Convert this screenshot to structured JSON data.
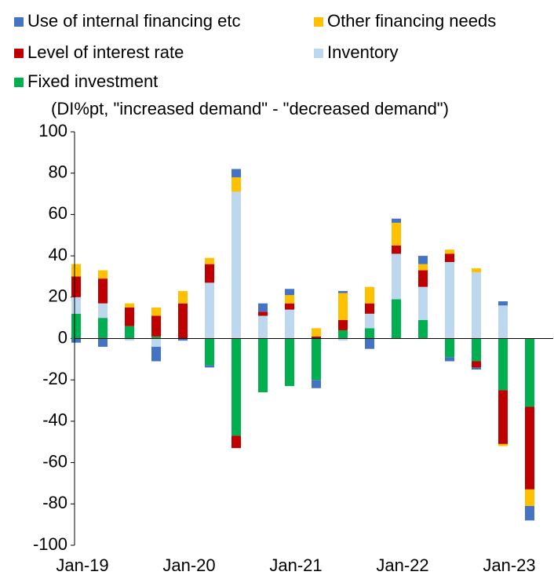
{
  "chart_data": {
    "type": "bar",
    "stacked": true,
    "subtitle": "(DI%pt, \"increased demand\" - \"decreased demand\")",
    "categories": [
      "Jan-19",
      null,
      null,
      null,
      "Jan-20",
      null,
      null,
      null,
      "Jan-21",
      null,
      null,
      null,
      "Jan-22",
      null,
      null,
      null,
      "Jan-23",
      null
    ],
    "series": [
      {
        "name": "Fixed investment",
        "color": "#00b050",
        "values": [
          12,
          10,
          6,
          1,
          0,
          -13,
          -47,
          -26,
          -23,
          -20,
          4,
          5,
          19,
          9,
          -9,
          -11,
          -25,
          -33
        ]
      },
      {
        "name": "Inventory",
        "color": "#bdd7ee",
        "values": [
          8,
          7,
          -1,
          -4,
          0,
          27,
          71,
          11,
          14,
          0,
          -1,
          7,
          22,
          16,
          37,
          32,
          16,
          0
        ]
      },
      {
        "name": "Level of interest rate",
        "color": "#c00000",
        "values": [
          10,
          12,
          9,
          10,
          17,
          9,
          -6,
          2,
          3,
          1,
          5,
          5,
          4,
          8,
          4,
          -3,
          -26,
          -40
        ]
      },
      {
        "name": "Other financing needs",
        "color": "#ffc000",
        "values": [
          6,
          4,
          2,
          4,
          6,
          3,
          7,
          0,
          4,
          4,
          13,
          8,
          11,
          3,
          2,
          2,
          -1,
          -8
        ]
      },
      {
        "name": "Use of internal financing etc",
        "color": "#4472c4",
        "values": [
          -2,
          -4,
          0,
          -7,
          -1,
          -1,
          4,
          4,
          3,
          -4,
          1,
          -5,
          2,
          4,
          -2,
          -1,
          2,
          -7
        ]
      }
    ],
    "ylim": [
      -100,
      100
    ],
    "yticks": [
      -100,
      -80,
      -60,
      -40,
      -20,
      0,
      20,
      40,
      60,
      80,
      100
    ]
  }
}
